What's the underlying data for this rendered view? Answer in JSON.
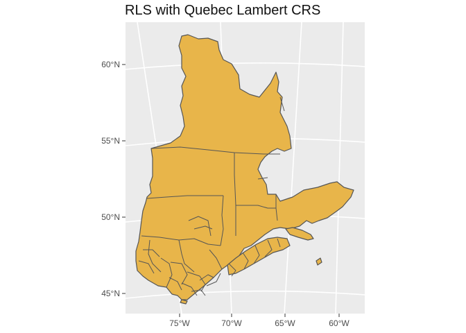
{
  "title": "RLS with Quebec Lambert CRS",
  "map": {
    "region": "Quebec",
    "fill_color": "#e8b54a",
    "border_color": "#555555",
    "panel_color": "#ebebeb",
    "gridline_color": "#ffffff",
    "lat_labels": [
      "60°N",
      "55°N",
      "50°N",
      "45°N"
    ],
    "lon_labels": [
      "75°W",
      "70°W",
      "65°W",
      "60°W"
    ]
  }
}
